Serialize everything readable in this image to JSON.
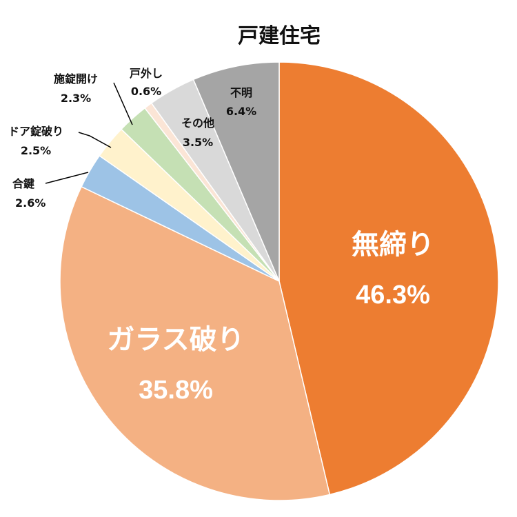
{
  "chart_data": {
    "type": "pie",
    "title": "戸建住宅",
    "start_angle_deg": 0,
    "direction": "clockwise",
    "slices": [
      {
        "label": "無締り",
        "value": 46.3,
        "value_label": "46.3%",
        "color": "#ED7D31"
      },
      {
        "label": "ガラス破り",
        "value": 35.8,
        "value_label": "35.8%",
        "color": "#F4B183"
      },
      {
        "label": "合鍵",
        "value": 2.6,
        "value_label": "2.6%",
        "color": "#9DC3E6"
      },
      {
        "label": "ドア錠破り",
        "value": 2.5,
        "value_label": "2.5%",
        "color": "#FFF2CC"
      },
      {
        "label": "施錠開け",
        "value": 2.3,
        "value_label": "2.3%",
        "color": "#C5E0B4"
      },
      {
        "label": "戸外し",
        "value": 0.6,
        "value_label": "0.6%",
        "color": "#FBE5D6"
      },
      {
        "label": "その他",
        "value": 3.5,
        "value_label": "3.5%",
        "color": "#D9D9D9"
      },
      {
        "label": "不明",
        "value": 6.4,
        "value_label": "6.4%",
        "color": "#A5A5A5"
      }
    ]
  }
}
